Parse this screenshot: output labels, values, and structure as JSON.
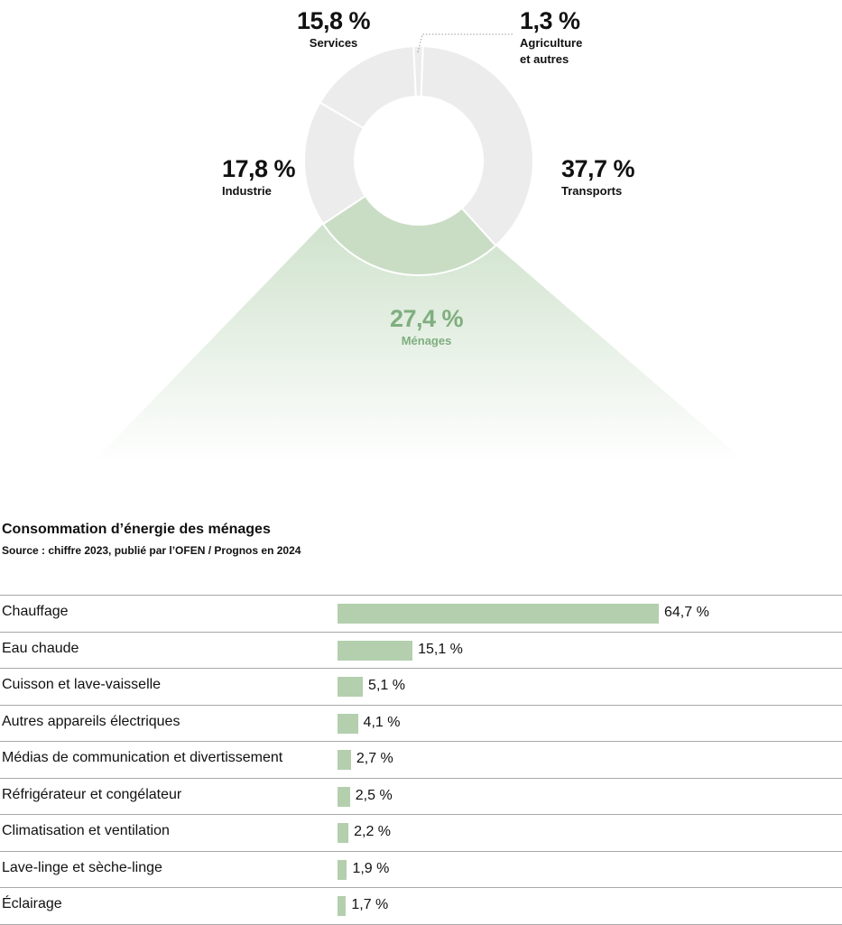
{
  "colors": {
    "accent": "#8cba8c",
    "segment": "#ececec",
    "bar": "#b4cfae"
  },
  "chart_data": [
    {
      "type": "pie",
      "categories": [
        "Transports",
        "Ménages",
        "Industrie",
        "Services",
        "Agriculture et autres"
      ],
      "values": [
        37.7,
        27.4,
        17.8,
        15.8,
        1.3
      ],
      "labels": [
        {
          "pct": "37,7 %",
          "name": "Transports"
        },
        {
          "pct": "27,4 %",
          "name": "Ménages"
        },
        {
          "pct": "17,8 %",
          "name": "Industrie"
        },
        {
          "pct": "15,8 %",
          "name": "Services"
        },
        {
          "pct": "1,3 %",
          "name": [
            "Agriculture",
            "et autres"
          ]
        }
      ],
      "highlight": "Ménages"
    },
    {
      "type": "bar",
      "orientation": "horizontal",
      "title": "Consommation d’énergie des ménages",
      "subtitle": "Source : chiffre 2023, publié par l’OFEN / Prognos en 2024",
      "categories": [
        "Chauffage",
        "Eau chaude",
        "Cuisson et lave-vaisselle",
        "Autres appareils électriques",
        "Médias de communication et divertissement",
        "Réfrigérateur et congélateur",
        "Climatisation et ventilation",
        "Lave-linge et sèche-linge",
        "Éclairage"
      ],
      "values": [
        64.7,
        15.1,
        5.1,
        4.1,
        2.7,
        2.5,
        2.2,
        1.9,
        1.7
      ],
      "value_labels": [
        "64,7 %",
        "15,1 %",
        "5,1 %",
        "4,1 %",
        "2,7 %",
        "2,5 %",
        "2,2 %",
        "1,9 %",
        "1,7 %"
      ]
    }
  ]
}
